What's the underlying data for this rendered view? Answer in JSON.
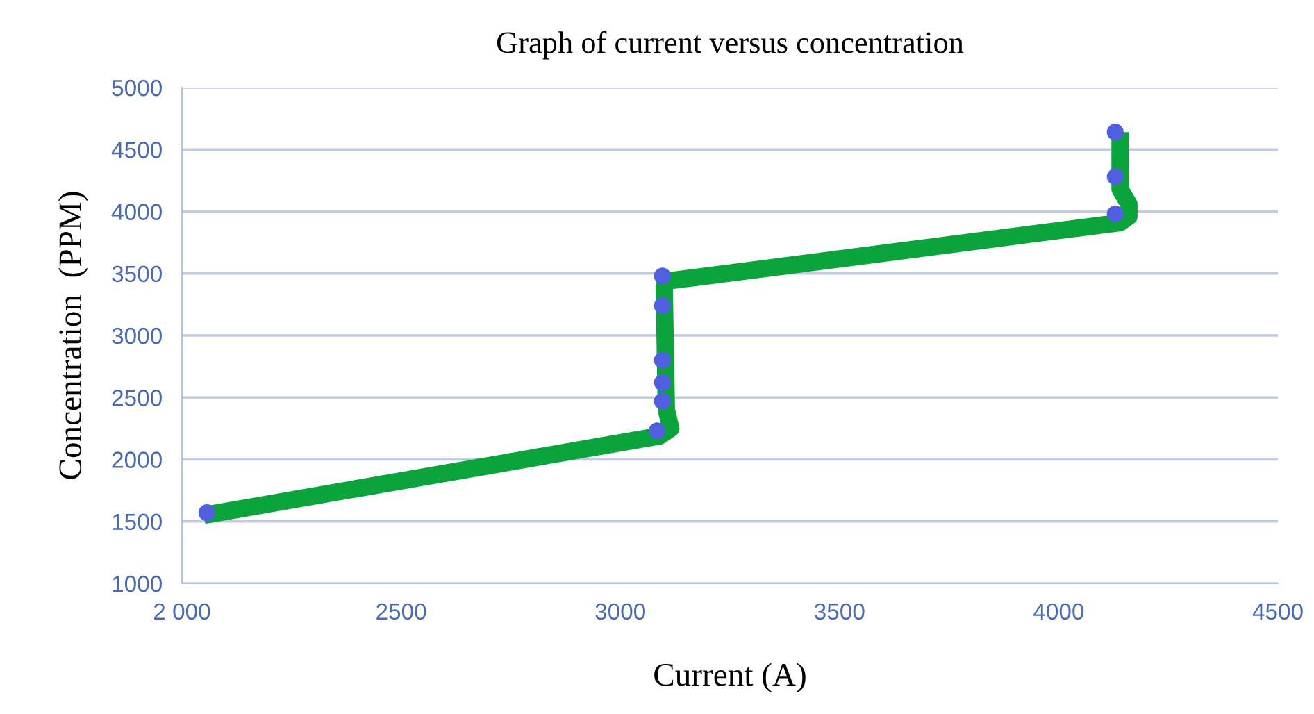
{
  "chart_data": {
    "type": "line",
    "title": "Graph of current versus concentration",
    "xlabel": "Current (A)",
    "ylabel": "Concentration  (PPM)",
    "series": [
      {
        "color": "#0aa33c",
        "x": [
          2050,
          3090,
          3115,
          3105,
          3100,
          3110,
          4140,
          4160,
          4160,
          4140,
          4140
        ],
        "values": [
          1550,
          2190,
          2250,
          2400,
          3400,
          3440,
          3910,
          3960,
          4060,
          4180,
          4640
        ]
      },
      {
        "type": "scatter",
        "marker": "circle",
        "color": "#4f5fe0",
        "x": [
          2057,
          3084,
          3096,
          3096,
          3096,
          3096,
          3096,
          4129,
          4129,
          4129
        ],
        "values": [
          1570,
          2230,
          2470,
          2620,
          2800,
          3240,
          3480,
          3980,
          4280,
          4640
        ]
      }
    ],
    "xlim": [
      2000,
      4500
    ],
    "ylim": [
      1000,
      5000
    ],
    "xticks": [
      {
        "value": 2000,
        "label": "2 000"
      },
      2500,
      3000,
      3500,
      4000,
      4500
    ],
    "yticks": [
      1000,
      1500,
      2000,
      2500,
      3000,
      3500,
      4000,
      4500,
      5000
    ],
    "grid": "y"
  }
}
